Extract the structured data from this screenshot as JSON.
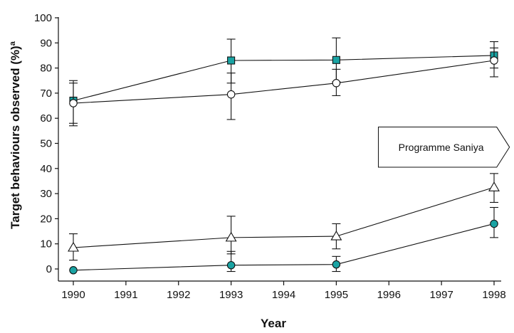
{
  "chart_data": {
    "type": "line",
    "title": "",
    "xlabel": "Year",
    "ylabel": "Target behaviours observed (%)",
    "ylabel_superscript": "a",
    "xlim": [
      1990,
      1998
    ],
    "ylim": [
      0,
      100
    ],
    "x_ticks": [
      1990,
      1991,
      1992,
      1993,
      1994,
      1995,
      1996,
      1997,
      1998
    ],
    "y_ticks": [
      0,
      10,
      20,
      30,
      40,
      50,
      60,
      70,
      80,
      90,
      100
    ],
    "grid": false,
    "legend": "none",
    "annotation": {
      "text": "Programme Saniya",
      "x_start": 1995.8,
      "x_end": 1998.05,
      "y_low": 40.5,
      "y_high": 56.5
    },
    "series": [
      {
        "marker": "square",
        "fill": "#1aa3a3",
        "x": [
          1990,
          1993,
          1995,
          1998
        ],
        "y": [
          67,
          83,
          83.2,
          85
        ],
        "err_low": [
          58,
          74,
          74.5,
          80
        ],
        "err_high": [
          75,
          91.5,
          92,
          90.5
        ]
      },
      {
        "marker": "circle",
        "fill": "#ffffff",
        "x": [
          1990,
          1993,
          1995,
          1998
        ],
        "y": [
          66,
          69.5,
          74,
          83
        ],
        "err_low": [
          57,
          59.5,
          69,
          76.5
        ],
        "err_high": [
          74,
          78,
          79.5,
          88
        ]
      },
      {
        "marker": "triangle",
        "fill": "#ffffff",
        "x": [
          1990,
          1993,
          1995,
          1998
        ],
        "y": [
          8.5,
          12.5,
          13,
          32.5
        ],
        "err_low": [
          3.5,
          6,
          8,
          26.5
        ],
        "err_high": [
          14,
          21,
          18,
          38
        ]
      },
      {
        "marker": "circle",
        "fill": "#1aa3a3",
        "x": [
          1990,
          1993,
          1995,
          1998
        ],
        "y": [
          -0.5,
          1.5,
          1.8,
          18
        ],
        "err_low": [
          -0.5,
          -1,
          -1,
          12.5
        ],
        "err_high": [
          -0.5,
          7,
          5,
          24.5
        ]
      }
    ]
  }
}
